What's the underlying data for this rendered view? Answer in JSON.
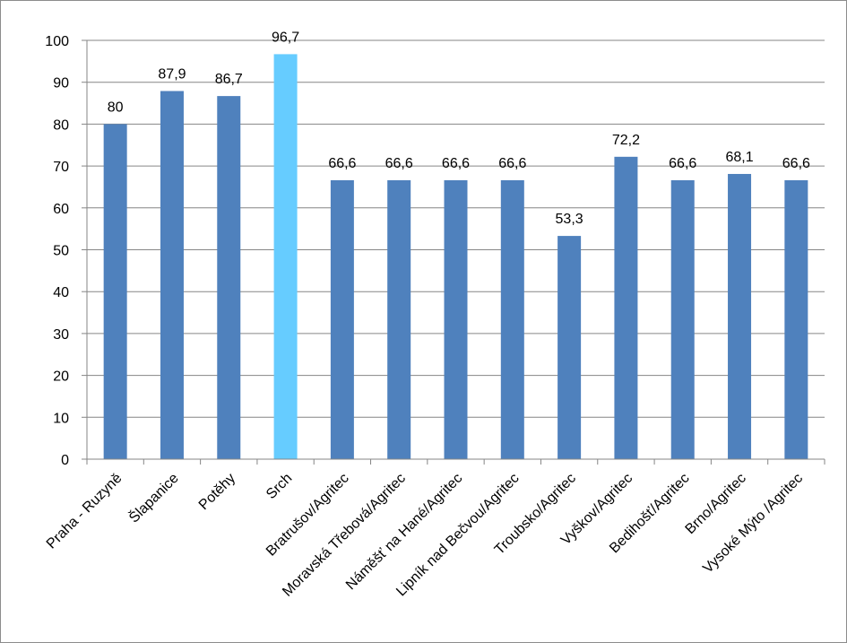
{
  "chart_data": {
    "type": "bar",
    "title": "",
    "xlabel": "",
    "ylabel": "",
    "ylim": [
      0,
      100
    ],
    "yticks": [
      0,
      10,
      20,
      30,
      40,
      50,
      60,
      70,
      80,
      90,
      100
    ],
    "grid": true,
    "legend": "none",
    "bar_color": "#4F81BD",
    "highlight_color": "#66CCFF",
    "highlight_index": 3,
    "categories": [
      "Praha - Ruzyně",
      "Šlapanice",
      "Potěhy",
      "Srch",
      "Bratrušov/Agritec",
      "Moravská Třebová/Agritec",
      "Náměšť na Hané/Agritec",
      "Lipník nad Bečvou/Agritec",
      "Troubsko/Agritec",
      "Vyškov/Agritec",
      "Bedihošť/Agritec",
      "Brno/Agritec",
      "Vysoké Mýto /Agritec"
    ],
    "values": [
      80,
      87.9,
      86.7,
      96.7,
      66.6,
      66.6,
      66.6,
      66.6,
      53.3,
      72.2,
      66.6,
      68.1,
      66.6
    ],
    "value_labels": [
      "80",
      "87,9",
      "86,7",
      "96,7",
      "66,6",
      "66,6",
      "66,6",
      "66,6",
      "53,3",
      "72,2",
      "66,6",
      "68,1",
      "66,6"
    ]
  }
}
